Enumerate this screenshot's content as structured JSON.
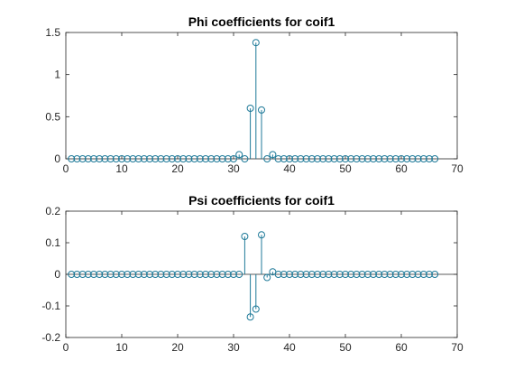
{
  "chart_data": [
    {
      "type": "stem",
      "title": "Phi coefficients for coif1",
      "xlabel": "",
      "ylabel": "",
      "xlim": [
        0,
        70
      ],
      "ylim": [
        0,
        1.5
      ],
      "xticks": [
        0,
        10,
        20,
        30,
        40,
        50,
        60,
        70
      ],
      "xtick_labels": [
        "0",
        "10",
        "20",
        "30",
        "40",
        "50",
        "60",
        "70"
      ],
      "yticks": [
        0,
        0.5,
        1,
        1.5
      ],
      "ytick_labels": [
        "0",
        "0.5",
        "1",
        "1.5"
      ],
      "grid": false,
      "color": "#1f7a99",
      "x": [
        1,
        2,
        3,
        4,
        5,
        6,
        7,
        8,
        9,
        10,
        11,
        12,
        13,
        14,
        15,
        16,
        17,
        18,
        19,
        20,
        21,
        22,
        23,
        24,
        25,
        26,
        27,
        28,
        29,
        30,
        31,
        32,
        33,
        34,
        35,
        36,
        37,
        38,
        39,
        40,
        41,
        42,
        43,
        44,
        45,
        46,
        47,
        48,
        49,
        50,
        51,
        52,
        53,
        54,
        55,
        56,
        57,
        58,
        59,
        60,
        61,
        62,
        63,
        64,
        65,
        66
      ],
      "y": [
        0,
        0,
        0,
        0,
        0,
        0,
        0,
        0,
        0,
        0,
        0,
        0,
        0,
        0,
        0,
        0,
        0,
        0,
        0,
        0,
        0,
        0,
        0,
        0,
        0,
        0,
        0,
        0,
        0,
        0,
        0.05,
        0,
        0.6,
        1.38,
        0.58,
        0,
        0.05,
        0,
        0,
        0,
        0,
        0,
        0,
        0,
        0,
        0,
        0,
        0,
        0,
        0,
        0,
        0,
        0,
        0,
        0,
        0,
        0,
        0,
        0,
        0,
        0,
        0,
        0,
        0,
        0,
        0
      ]
    },
    {
      "type": "stem",
      "title": "Psi coefficients for coif1",
      "xlabel": "",
      "ylabel": "",
      "xlim": [
        0,
        70
      ],
      "ylim": [
        -0.2,
        0.2
      ],
      "xticks": [
        0,
        10,
        20,
        30,
        40,
        50,
        60,
        70
      ],
      "xtick_labels": [
        "0",
        "10",
        "20",
        "30",
        "40",
        "50",
        "60",
        "70"
      ],
      "yticks": [
        -0.2,
        -0.1,
        0,
        0.1,
        0.2
      ],
      "ytick_labels": [
        "-0.2",
        "-0.1",
        "0",
        "0.1",
        "0.2"
      ],
      "grid": false,
      "baseline_y": 0,
      "color": "#1f7a99",
      "x": [
        1,
        2,
        3,
        4,
        5,
        6,
        7,
        8,
        9,
        10,
        11,
        12,
        13,
        14,
        15,
        16,
        17,
        18,
        19,
        20,
        21,
        22,
        23,
        24,
        25,
        26,
        27,
        28,
        29,
        30,
        31,
        32,
        33,
        34,
        35,
        36,
        37,
        38,
        39,
        40,
        41,
        42,
        43,
        44,
        45,
        46,
        47,
        48,
        49,
        50,
        51,
        52,
        53,
        54,
        55,
        56,
        57,
        58,
        59,
        60,
        61,
        62,
        63,
        64,
        65,
        66
      ],
      "y": [
        0,
        0,
        0,
        0,
        0,
        0,
        0,
        0,
        0,
        0,
        0,
        0,
        0,
        0,
        0,
        0,
        0,
        0,
        0,
        0,
        0,
        0,
        0,
        0,
        0,
        0,
        0,
        0,
        0,
        0,
        0,
        0.12,
        -0.135,
        -0.11,
        0.125,
        -0.01,
        0.008,
        0,
        0,
        0,
        0,
        0,
        0,
        0,
        0,
        0,
        0,
        0,
        0,
        0,
        0,
        0,
        0,
        0,
        0,
        0,
        0,
        0,
        0,
        0,
        0,
        0,
        0,
        0,
        0,
        0
      ]
    }
  ]
}
